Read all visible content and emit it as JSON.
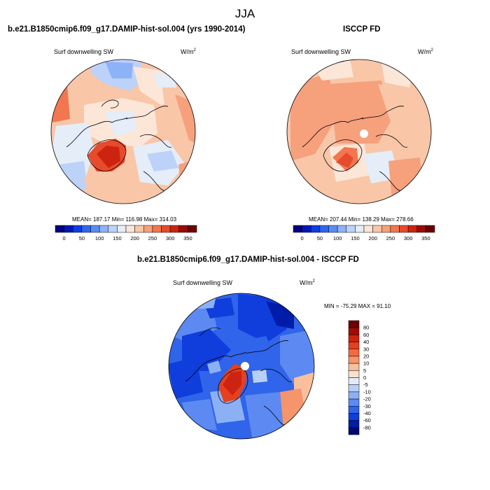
{
  "suptitle": "JJA",
  "chart_data": [
    {
      "type": "heatmap",
      "projection": "north-polar-stereographic",
      "title": "b.e21.B1850cmip6.f09_g17.DAMIP-hist-sol.004 (yrs 1990-2014)",
      "variable": "Surf downwelling SW",
      "units_base": "W/m",
      "units_exp": "2",
      "stats": {
        "mean": 187.17,
        "min": 116.98,
        "max": 314.03
      },
      "stats_text": "MEAN= 187.17  Min= 116.98  Max= 314.03",
      "colorbar": {
        "orientation": "horizontal",
        "ticks": [
          "0",
          "50",
          "100",
          "150",
          "200",
          "250",
          "300",
          "350"
        ]
      }
    },
    {
      "type": "heatmap",
      "projection": "north-polar-stereographic",
      "title": "ISCCP FD",
      "variable": "Surf downwelling SW",
      "units_base": "W/m",
      "units_exp": "2",
      "stats": {
        "mean": 207.44,
        "min": 138.29,
        "max": 278.66
      },
      "stats_text": "MEAN= 207.44  Min= 138.29  Max= 278.66",
      "colorbar": {
        "orientation": "horizontal",
        "ticks": [
          "0",
          "50",
          "100",
          "150",
          "200",
          "250",
          "300",
          "350"
        ]
      }
    },
    {
      "type": "heatmap",
      "projection": "north-polar-stereographic",
      "title": "b.e21.B1850cmip6.f09_g17.DAMIP-hist-sol.004 - ISCCP FD",
      "variable": "Surf downwelling SW",
      "units_base": "W/m",
      "units_exp": "2",
      "stats": {
        "min": -75.29,
        "max": 91.1
      },
      "stats_text": "MIN = -75.29  MAX =  91.10",
      "colorbar": {
        "orientation": "vertical",
        "ticks": [
          "80",
          "60",
          "40",
          "30",
          "20",
          "10",
          "5",
          "0",
          "-5",
          "-10",
          "-20",
          "-30",
          "-40",
          "-60",
          "-80"
        ]
      }
    }
  ],
  "colors": {
    "seq": [
      "#01007e",
      "#0018b8",
      "#0d3ee0",
      "#2f66f0",
      "#5b8cf4",
      "#8eb2f8",
      "#bdd2f9",
      "#e4edf8",
      "#fbe6d8",
      "#f9c6a8",
      "#f6a07c",
      "#f2764f",
      "#e84a2c",
      "#cc2410",
      "#9c0a04",
      "#6c0000"
    ],
    "div": [
      "#6c0000",
      "#a00c04",
      "#cc2410",
      "#e6401e",
      "#f26a42",
      "#f6946c",
      "#f9bf9c",
      "#fbe0cc",
      "#e2ecf8",
      "#b8d0f8",
      "#8cb0f6",
      "#5c8af2",
      "#3064ea",
      "#0f3edc",
      "#001ca8",
      "#000a72"
    ]
  }
}
